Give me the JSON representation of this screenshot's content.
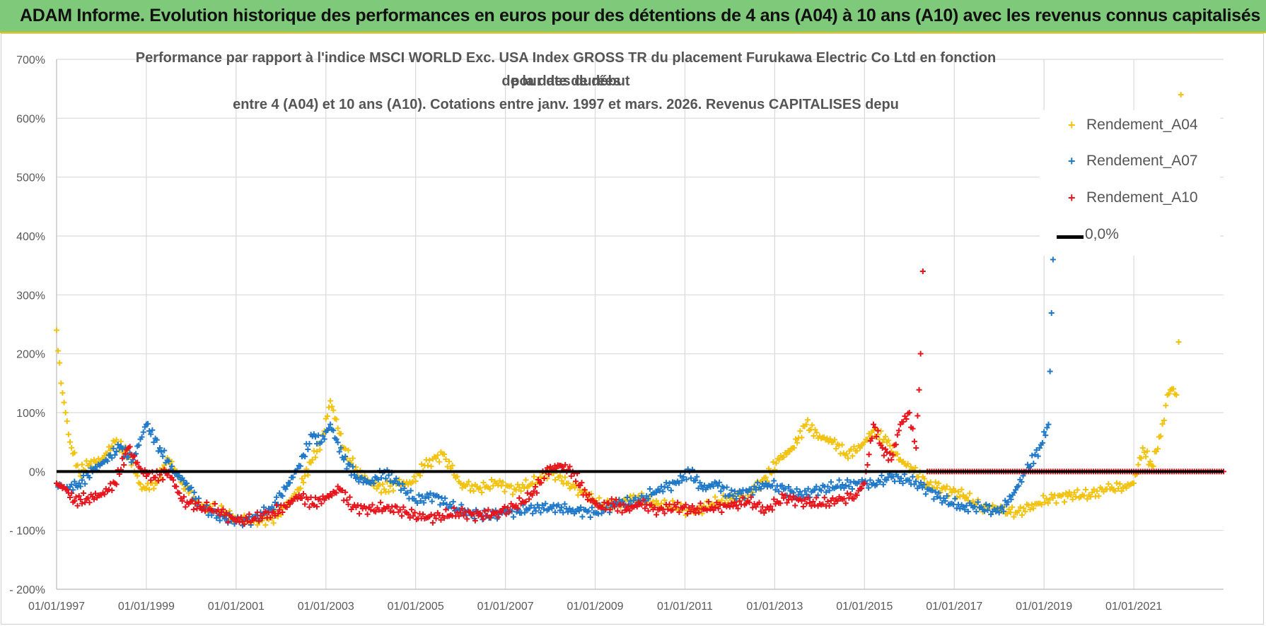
{
  "banner": {
    "title": "ADAM Informe. Evolution historique des performances en euros pour des détentions de 4 ans (A04) à 10 ans (A10) avec les revenus connus capitalisés"
  },
  "chart_data": {
    "type": "scatter",
    "title_lines": [
      "Performance par rapport à l'indice MSCI WORLD Exc. USA Index GROSS TR  du placement Furukawa Electric Co Ltd en fonction de la date de début",
      "pour des durées",
      "entre 4 (A04) et 10 ans (A10). Cotations entre janv. 1997 et mars. 2026. Revenus CAPITALISES depu"
    ],
    "ylim": [
      -200,
      700
    ],
    "yticks": [
      700,
      600,
      500,
      400,
      300,
      200,
      100,
      0,
      -100,
      -200
    ],
    "ytick_labels": [
      "700%",
      "600%",
      "500%",
      "400%",
      "300%",
      "200%",
      "100%",
      "0%",
      "- 100%",
      "- 200%"
    ],
    "xlim": [
      1997.0,
      2023.0
    ],
    "xticks": [
      1997,
      1999,
      2001,
      2003,
      2005,
      2007,
      2009,
      2011,
      2013,
      2015,
      2017,
      2019,
      2021
    ],
    "xtick_labels": [
      "01/01/1997",
      "01/01/1999",
      "01/01/2001",
      "01/01/2003",
      "01/01/2005",
      "01/01/2007",
      "01/01/2009",
      "01/01/2011",
      "01/01/2013",
      "01/01/2015",
      "01/01/2017",
      "01/01/2019",
      "01/01/2021"
    ],
    "series": [
      {
        "name": "Rendement_A04",
        "color": "#f2c20f",
        "x": [
          1997.0,
          1997.1,
          1997.2,
          1997.3,
          1997.5,
          1997.7,
          1998.0,
          1998.3,
          1998.6,
          1998.9,
          1999.2,
          1999.5,
          1999.8,
          2000.2,
          2000.6,
          2001.0,
          2001.4,
          2001.8,
          2002.1,
          2002.4,
          2002.7,
          2002.9,
          2003.1,
          2003.4,
          2003.7,
          2004.0,
          2004.3,
          2004.6,
          2004.9,
          2005.2,
          2005.6,
          2006.0,
          2006.4,
          2006.8,
          2007.2,
          2007.6,
          2008.0,
          2008.4,
          2008.8,
          2009.2,
          2009.6,
          2010.0,
          2010.4,
          2010.8,
          2011.2,
          2011.6,
          2012.0,
          2012.4,
          2012.8,
          2013.1,
          2013.4,
          2013.7,
          2014.0,
          2014.3,
          2014.6,
          2014.9,
          2015.2,
          2015.5,
          2015.8,
          2016.1,
          2016.4,
          2016.8,
          2017.2,
          2017.6,
          2018.0,
          2018.4,
          2018.8,
          2019.2,
          2019.6,
          2020.0,
          2020.4,
          2020.8,
          2021.0,
          2021.2,
          2021.4,
          2021.6,
          2021.75,
          2021.85,
          2021.95,
          2022.0,
          2022.05
        ],
        "values": [
          240,
          150,
          100,
          50,
          0,
          10,
          20,
          50,
          30,
          -30,
          -20,
          20,
          -20,
          -60,
          -65,
          -80,
          -85,
          -80,
          -60,
          -30,
          20,
          50,
          120,
          40,
          0,
          -20,
          -30,
          -20,
          -20,
          10,
          30,
          -20,
          -30,
          -20,
          -30,
          -20,
          0,
          -20,
          -40,
          -60,
          -50,
          -45,
          -55,
          -60,
          -70,
          -55,
          -45,
          -40,
          -10,
          20,
          40,
          80,
          60,
          50,
          30,
          40,
          70,
          50,
          20,
          0,
          -20,
          -30,
          -40,
          -60,
          -65,
          -70,
          -55,
          -45,
          -40,
          -40,
          -30,
          -25,
          -20,
          40,
          10,
          60,
          130,
          140,
          130,
          220,
          640
        ],
        "marker": "+"
      },
      {
        "name": "Rendement_A07",
        "color": "#1f78c8",
        "x": [
          1997.0,
          1997.2,
          1997.5,
          1997.8,
          1998.1,
          1998.4,
          1998.7,
          1999.0,
          1999.3,
          1999.6,
          1999.9,
          2000.2,
          2000.6,
          2001.0,
          2001.4,
          2001.8,
          2002.1,
          2002.4,
          2002.7,
          2002.9,
          2003.1,
          2003.4,
          2003.7,
          2004.0,
          2004.3,
          2004.6,
          2005.0,
          2005.4,
          2005.8,
          2006.2,
          2006.6,
          2007.0,
          2007.5,
          2008.0,
          2008.5,
          2009.0,
          2009.5,
          2010.0,
          2010.4,
          2010.8,
          2011.1,
          2011.4,
          2011.7,
          2012.0,
          2012.4,
          2012.8,
          2013.2,
          2013.6,
          2014.0,
          2014.4,
          2014.8,
          2015.2,
          2015.6,
          2016.0,
          2016.4,
          2016.8,
          2017.2,
          2017.6,
          2018.0,
          2018.3,
          2018.6,
          2018.9,
          2019.1,
          2019.2
        ],
        "values": [
          -20,
          -30,
          -20,
          0,
          20,
          40,
          20,
          80,
          40,
          0,
          -20,
          -60,
          -75,
          -85,
          -80,
          -60,
          -30,
          10,
          60,
          50,
          80,
          20,
          -10,
          -20,
          0,
          -20,
          -50,
          -40,
          -60,
          -70,
          -75,
          -70,
          -65,
          -60,
          -65,
          -70,
          -55,
          -50,
          -30,
          -20,
          0,
          -30,
          -20,
          -40,
          -35,
          -20,
          -30,
          -40,
          -30,
          -25,
          -20,
          -20,
          -10,
          -15,
          -30,
          -50,
          -60,
          -60,
          -70,
          -40,
          0,
          40,
          80,
          360
        ],
        "marker": "+"
      },
      {
        "name": "Rendement_A10",
        "color": "#e8141c",
        "x": [
          1997.0,
          1997.2,
          1997.4,
          1997.7,
          1998.0,
          1998.3,
          1998.6,
          1998.9,
          1999.2,
          1999.5,
          1999.8,
          2000.2,
          2000.6,
          2001.0,
          2001.4,
          2001.8,
          2002.1,
          2002.4,
          2002.7,
          2003.0,
          2003.3,
          2003.6,
          2004.0,
          2004.4,
          2004.8,
          2005.2,
          2005.6,
          2006.0,
          2006.4,
          2006.8,
          2007.2,
          2007.6,
          2007.9,
          2008.2,
          2008.5,
          2008.8,
          2009.1,
          2009.4,
          2009.7,
          2010.0,
          2010.4,
          2010.8,
          2011.2,
          2011.6,
          2012.0,
          2012.4,
          2012.8,
          2013.2,
          2013.6,
          2014.0,
          2014.4,
          2014.8,
          2015.0,
          2015.2,
          2015.4,
          2015.6,
          2015.8,
          2016.0,
          2016.15,
          2016.25,
          2016.3
        ],
        "values": [
          -20,
          -30,
          -50,
          -45,
          -40,
          -20,
          40,
          0,
          -10,
          0,
          -50,
          -60,
          -65,
          -85,
          -80,
          -70,
          -60,
          -40,
          -55,
          -45,
          -30,
          -60,
          -65,
          -60,
          -70,
          -80,
          -75,
          -70,
          -75,
          -70,
          -60,
          -40,
          0,
          10,
          0,
          -40,
          -60,
          -55,
          -65,
          -55,
          -65,
          -60,
          -65,
          -60,
          -60,
          -50,
          -65,
          -45,
          -50,
          -55,
          -50,
          -40,
          -20,
          80,
          40,
          20,
          80,
          100,
          40,
          200,
          340
        ],
        "marker": "+"
      },
      {
        "name": "Rendement_A10 (flat)",
        "color": "#e8141c",
        "x_range": [
          2016.4,
          2023.0
        ],
        "value": 0,
        "marker": "+"
      }
    ],
    "reference_line": {
      "label": "0,0%",
      "value": 0,
      "color": "#000000"
    },
    "legend": {
      "position": "top-right",
      "entries": [
        {
          "label": "Rendement_A04",
          "color": "#f2c20f",
          "marker": "+"
        },
        {
          "label": "Rendement_A07",
          "color": "#1f78c8",
          "marker": "+"
        },
        {
          "label": "Rendement_A10",
          "color": "#e8141c",
          "marker": "+"
        },
        {
          "label": "0,0%",
          "color": "#000000",
          "marker": "line"
        }
      ]
    }
  }
}
